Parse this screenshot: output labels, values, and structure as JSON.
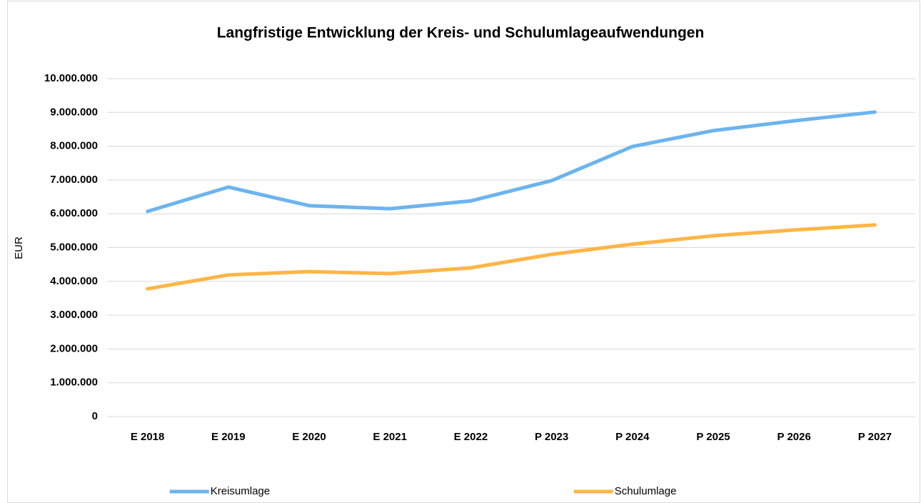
{
  "chart_data": {
    "type": "line",
    "title": "Langfristige Entwicklung der Kreis- und Schulumlageaufwendungen",
    "y_label": "EUR",
    "categories": [
      "E 2018",
      "E 2019",
      "E 2020",
      "E 2021",
      "E 2022",
      "P 2023",
      "P 2024",
      "P 2025",
      "P 2026",
      "P 2027"
    ],
    "series": [
      {
        "name": "Kreisumlage",
        "color": "#6cb4ee",
        "values": [
          6070000,
          6790000,
          6240000,
          6150000,
          6380000,
          6980000,
          7990000,
          8460000,
          8750000,
          9010000
        ]
      },
      {
        "name": "Schulumlage",
        "color": "#ffb547",
        "values": [
          3780000,
          4190000,
          4290000,
          4230000,
          4400000,
          4800000,
          5100000,
          5350000,
          5520000,
          5670000
        ]
      }
    ],
    "ylim": [
      0,
      10000000
    ],
    "yticks": [
      0,
      {
        "value": 1000000,
        "label": "1.000.000"
      },
      {
        "value": 2000000,
        "label": "2.000.000"
      },
      {
        "value": 3000000,
        "label": "3.000.000"
      },
      {
        "value": 4000000,
        "label": "4.000.000"
      },
      {
        "value": 5000000,
        "label": "5.000.000"
      },
      {
        "value": 6000000,
        "label": "6.000.000"
      },
      {
        "value": 7000000,
        "label": "7.000.000"
      },
      {
        "value": 8000000,
        "label": "8.000.000"
      },
      {
        "value": 9000000,
        "label": "9.000.000"
      },
      {
        "value": 10000000,
        "label": "10.000.000"
      }
    ],
    "grid": true,
    "legend": "bottom"
  }
}
